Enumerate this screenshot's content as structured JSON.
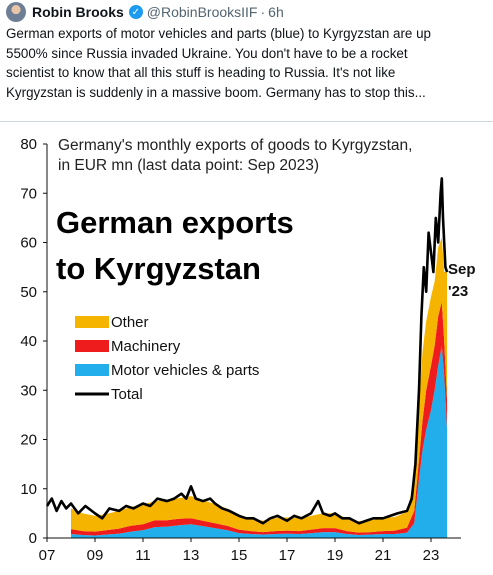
{
  "tweet": {
    "author": "Robin Brooks",
    "handle": "@RobinBrooksIIF",
    "separator": "·",
    "time": "6h",
    "text_lines": [
      "German exports of motor vehicles and parts (blue) to Kyrgyzstan are up",
      "5500% since Russia invaded Ukraine. You don't have to be a rocket",
      "scientist to know that all this stuff is heading to Russia. It's not like",
      "Kyrgyzstan is suddenly in a massive boom. Germany has to stop this..."
    ]
  },
  "chart_data": {
    "type": "area",
    "subtitle_lines": [
      "Germany's monthly exports of goods to Kyrgyzstan,",
      "in EUR mn (last data point: Sep 2023)"
    ],
    "title_lines": [
      "German exports",
      "to Kyrgyzstan"
    ],
    "annotation_lines": [
      "Sep",
      "'23"
    ],
    "ylim": [
      0,
      80
    ],
    "yticks": [
      0,
      10,
      20,
      30,
      40,
      50,
      60,
      70,
      80
    ],
    "xlim": [
      2007.0,
      2024.25
    ],
    "xticks": [
      2007,
      2009,
      2011,
      2013,
      2015,
      2017,
      2019,
      2021,
      2023
    ],
    "xtick_labels": [
      "07",
      "09",
      "11",
      "13",
      "15",
      "17",
      "19",
      "21",
      "23"
    ],
    "legend": {
      "placement": "center-left",
      "entries": [
        {
          "label": "Other",
          "color": "#f5b400"
        },
        {
          "label": "Machinery",
          "color": "#ee1c1c"
        },
        {
          "label": "Motor vehicles & parts",
          "color": "#22aeea"
        },
        {
          "label": "Total",
          "color": "#000000"
        }
      ]
    },
    "series": [
      {
        "name": "Motor vehicles & parts",
        "color": "#22aeea",
        "points": [
          [
            2008.0,
            0.8
          ],
          [
            2008.5,
            0.6
          ],
          [
            2009.0,
            0.5
          ],
          [
            2009.5,
            0.7
          ],
          [
            2010.0,
            0.9
          ],
          [
            2010.5,
            1.3
          ],
          [
            2011.0,
            1.6
          ],
          [
            2011.5,
            2.2
          ],
          [
            2012.0,
            2.3
          ],
          [
            2012.5,
            2.6
          ],
          [
            2013.0,
            2.8
          ],
          [
            2013.5,
            2.4
          ],
          [
            2014.0,
            2.0
          ],
          [
            2014.5,
            1.6
          ],
          [
            2015.0,
            1.0
          ],
          [
            2015.5,
            0.8
          ],
          [
            2016.0,
            0.7
          ],
          [
            2016.5,
            0.8
          ],
          [
            2017.0,
            0.9
          ],
          [
            2017.5,
            0.8
          ],
          [
            2018.0,
            1.0
          ],
          [
            2018.5,
            1.2
          ],
          [
            2019.0,
            1.2
          ],
          [
            2019.5,
            0.8
          ],
          [
            2020.0,
            0.6
          ],
          [
            2020.5,
            0.7
          ],
          [
            2021.0,
            0.8
          ],
          [
            2021.5,
            0.8
          ],
          [
            2022.0,
            1.1
          ],
          [
            2022.3,
            3.0
          ],
          [
            2022.5,
            12.0
          ],
          [
            2022.65,
            18.0
          ],
          [
            2022.8,
            22.0
          ],
          [
            2023.0,
            26.0
          ],
          [
            2023.15,
            30.0
          ],
          [
            2023.3,
            35.0
          ],
          [
            2023.45,
            39.0
          ],
          [
            2023.55,
            33.0
          ],
          [
            2023.67,
            22.0
          ]
        ]
      },
      {
        "name": "Machinery",
        "color": "#ee1c1c",
        "points": [
          [
            2008.0,
            1.0
          ],
          [
            2008.5,
            0.8
          ],
          [
            2009.0,
            0.8
          ],
          [
            2009.5,
            0.9
          ],
          [
            2010.0,
            1.0
          ],
          [
            2010.5,
            1.2
          ],
          [
            2011.0,
            1.2
          ],
          [
            2011.5,
            1.4
          ],
          [
            2012.0,
            1.3
          ],
          [
            2012.5,
            1.3
          ],
          [
            2013.0,
            1.2
          ],
          [
            2013.5,
            1.1
          ],
          [
            2014.0,
            1.0
          ],
          [
            2014.5,
            0.9
          ],
          [
            2015.0,
            0.7
          ],
          [
            2015.5,
            0.6
          ],
          [
            2016.0,
            0.5
          ],
          [
            2016.5,
            0.6
          ],
          [
            2017.0,
            0.6
          ],
          [
            2017.5,
            0.6
          ],
          [
            2018.0,
            0.7
          ],
          [
            2018.5,
            0.8
          ],
          [
            2019.0,
            0.8
          ],
          [
            2019.5,
            0.6
          ],
          [
            2020.0,
            0.5
          ],
          [
            2020.5,
            0.5
          ],
          [
            2021.0,
            0.6
          ],
          [
            2021.5,
            0.7
          ],
          [
            2022.0,
            1.0
          ],
          [
            2022.3,
            2.5
          ],
          [
            2022.5,
            4.0
          ],
          [
            2022.65,
            6.0
          ],
          [
            2022.8,
            8.0
          ],
          [
            2023.0,
            9.0
          ],
          [
            2023.15,
            9.0
          ],
          [
            2023.3,
            10.0
          ],
          [
            2023.45,
            9.0
          ],
          [
            2023.55,
            7.0
          ],
          [
            2023.67,
            6.0
          ]
        ]
      },
      {
        "name": "Other",
        "color": "#f5b400",
        "points": [
          [
            2008.0,
            4.2
          ],
          [
            2008.5,
            3.6
          ],
          [
            2009.0,
            3.2
          ],
          [
            2009.5,
            3.3
          ],
          [
            2010.0,
            3.6
          ],
          [
            2010.5,
            3.8
          ],
          [
            2011.0,
            4.0
          ],
          [
            2011.5,
            3.9
          ],
          [
            2012.0,
            4.1
          ],
          [
            2012.5,
            4.2
          ],
          [
            2013.0,
            4.5
          ],
          [
            2013.5,
            4.2
          ],
          [
            2014.0,
            3.9
          ],
          [
            2014.5,
            3.5
          ],
          [
            2015.0,
            2.8
          ],
          [
            2015.5,
            2.6
          ],
          [
            2016.0,
            2.3
          ],
          [
            2016.5,
            2.6
          ],
          [
            2017.0,
            2.7
          ],
          [
            2017.5,
            2.6
          ],
          [
            2018.0,
            2.8
          ],
          [
            2018.5,
            3.0
          ],
          [
            2019.0,
            3.0
          ],
          [
            2019.5,
            2.6
          ],
          [
            2020.0,
            2.3
          ],
          [
            2020.5,
            2.4
          ],
          [
            2021.0,
            2.6
          ],
          [
            2021.5,
            2.8
          ],
          [
            2022.0,
            3.2
          ],
          [
            2022.3,
            6.5
          ],
          [
            2022.5,
            12.0
          ],
          [
            2022.65,
            14.0
          ],
          [
            2022.8,
            14.0
          ],
          [
            2023.0,
            14.0
          ],
          [
            2023.15,
            13.0
          ],
          [
            2023.3,
            14.0
          ],
          [
            2023.45,
            13.0
          ],
          [
            2023.55,
            14.0
          ],
          [
            2023.67,
            26.0
          ]
        ]
      },
      {
        "name": "Total",
        "color": "#000000",
        "points": [
          [
            2007.0,
            6.5
          ],
          [
            2007.2,
            8.0
          ],
          [
            2007.4,
            5.5
          ],
          [
            2007.6,
            7.5
          ],
          [
            2007.8,
            6.0
          ],
          [
            2008.0,
            7.0
          ],
          [
            2008.3,
            5.0
          ],
          [
            2008.6,
            6.5
          ],
          [
            2009.0,
            5.0
          ],
          [
            2009.3,
            4.0
          ],
          [
            2009.6,
            6.0
          ],
          [
            2010.0,
            5.5
          ],
          [
            2010.3,
            6.5
          ],
          [
            2010.6,
            6.0
          ],
          [
            2011.0,
            7.0
          ],
          [
            2011.3,
            6.5
          ],
          [
            2011.6,
            8.0
          ],
          [
            2012.0,
            7.5
          ],
          [
            2012.3,
            8.0
          ],
          [
            2012.6,
            9.0
          ],
          [
            2012.8,
            8.0
          ],
          [
            2013.0,
            10.5
          ],
          [
            2013.2,
            8.0
          ],
          [
            2013.5,
            7.5
          ],
          [
            2013.8,
            8.0
          ],
          [
            2014.0,
            7.0
          ],
          [
            2014.3,
            6.0
          ],
          [
            2014.6,
            5.5
          ],
          [
            2015.0,
            4.5
          ],
          [
            2015.3,
            4.0
          ],
          [
            2015.6,
            4.0
          ],
          [
            2016.0,
            3.0
          ],
          [
            2016.3,
            4.0
          ],
          [
            2016.6,
            4.5
          ],
          [
            2017.0,
            3.5
          ],
          [
            2017.3,
            4.5
          ],
          [
            2017.6,
            4.0
          ],
          [
            2018.0,
            5.0
          ],
          [
            2018.3,
            7.5
          ],
          [
            2018.5,
            5.0
          ],
          [
            2018.8,
            4.5
          ],
          [
            2019.0,
            5.0
          ],
          [
            2019.3,
            4.0
          ],
          [
            2019.6,
            4.0
          ],
          [
            2020.0,
            3.0
          ],
          [
            2020.3,
            3.5
          ],
          [
            2020.6,
            4.0
          ],
          [
            2021.0,
            4.0
          ],
          [
            2021.3,
            4.5
          ],
          [
            2021.6,
            5.0
          ],
          [
            2022.0,
            5.5
          ],
          [
            2022.2,
            8.0
          ],
          [
            2022.35,
            15.0
          ],
          [
            2022.5,
            30.0
          ],
          [
            2022.6,
            45.0
          ],
          [
            2022.7,
            55.0
          ],
          [
            2022.8,
            50.0
          ],
          [
            2022.9,
            62.0
          ],
          [
            2023.0,
            58.0
          ],
          [
            2023.1,
            54.0
          ],
          [
            2023.2,
            65.0
          ],
          [
            2023.3,
            60.0
          ],
          [
            2023.4,
            70.0
          ],
          [
            2023.45,
            73.0
          ],
          [
            2023.5,
            65.0
          ],
          [
            2023.55,
            60.0
          ],
          [
            2023.6,
            55.0
          ],
          [
            2023.67,
            54.0
          ]
        ]
      }
    ]
  }
}
